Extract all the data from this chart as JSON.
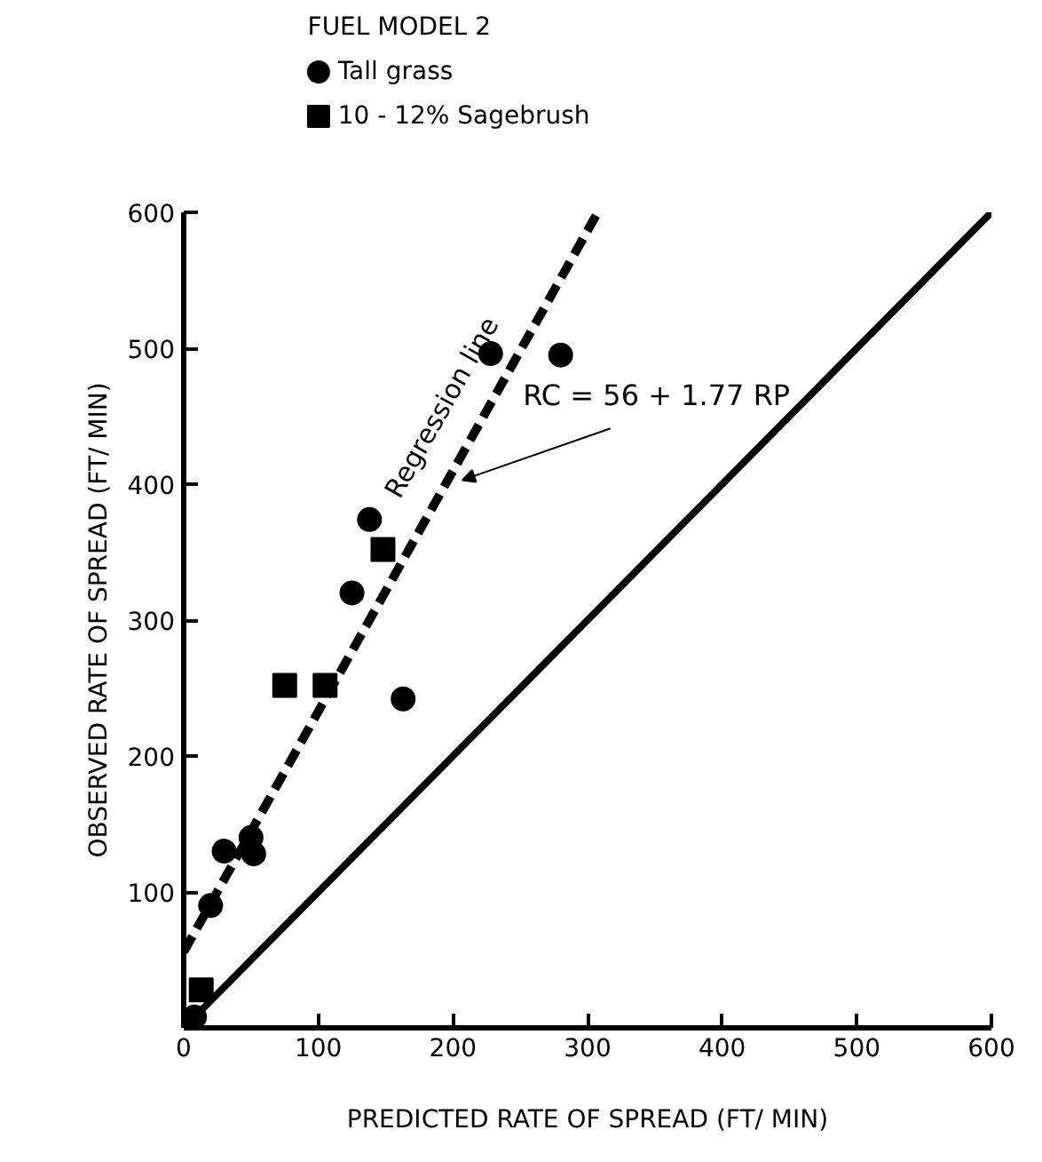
{
  "chart_data": {
    "type": "scatter",
    "xlabel": "PREDICTED RATE OF SPREAD (FT/ MIN)",
    "ylabel": "OBSERVED RATE OF SPREAD (FT/ MIN)",
    "legend_title": "FUEL MODEL 2",
    "legend": "top left",
    "grid": false,
    "xlim": [
      0,
      600
    ],
    "ylim": [
      0,
      600
    ],
    "xticks": [
      0,
      100,
      200,
      300,
      400,
      500,
      600
    ],
    "yticks": [
      {
        "value": 0,
        "label": null
      },
      100,
      200,
      300,
      400,
      500,
      600
    ],
    "series": [
      {
        "name": "Tall grass",
        "marker": "circle",
        "color": "#000000",
        "x": [
          8,
          20,
          30,
          50,
          52,
          125,
          138,
          163,
          228,
          280
        ],
        "values": [
          8,
          90,
          130,
          140,
          128,
          320,
          374,
          242,
          496,
          495
        ]
      },
      {
        "name": "10 - 12% Sagebrush",
        "marker": "square",
        "color": "#000000",
        "x": [
          13,
          75,
          105,
          148
        ],
        "values": [
          28,
          252,
          252,
          352
        ]
      },
      {
        "type": "line",
        "marker": "none",
        "line_style": "dashed",
        "color": "#000000",
        "x": [
          0,
          307
        ],
        "values": [
          56,
          599
        ]
      },
      {
        "type": "line",
        "marker": "none",
        "line_style": "solid",
        "color": "#000000",
        "x": [
          10,
          600
        ],
        "values": [
          10,
          600
        ]
      }
    ],
    "annotations": [
      "Regression line",
      {
        "text": "RC = 56 + 1.77 RP",
        "x": 207,
        "y": 403
      }
    ]
  }
}
